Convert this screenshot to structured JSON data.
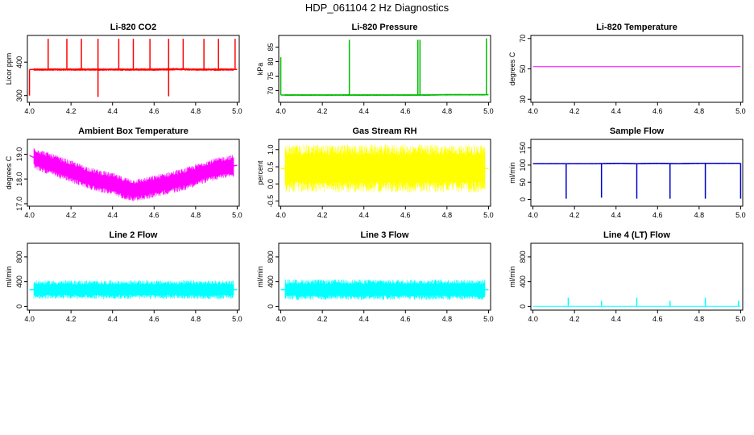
{
  "figure": {
    "title": "HDP_061104  2 Hz Diagnostics"
  },
  "chart_data": [
    {
      "id": "co2",
      "type": "line",
      "title": "Li-820 CO2",
      "xlabel": "",
      "ylabel": "Licor ppm",
      "color": "#ff0000",
      "xlim": [
        3.99,
        5.01
      ],
      "ylim": [
        280,
        480
      ],
      "xticks": [
        4.0,
        4.2,
        4.4,
        4.6,
        4.8,
        5.0
      ],
      "xtick_labels": [
        "4.0",
        "4.2",
        "4.4",
        "4.6",
        "4.8",
        "5.0"
      ],
      "yticks": [
        300,
        400
      ],
      "ytick_labels": [
        "300",
        "400"
      ],
      "x": [
        4.0,
        4.1,
        4.2,
        4.3,
        4.4,
        4.5,
        4.6,
        4.7,
        4.8,
        4.9,
        5.0
      ],
      "values": [
        378,
        378,
        378,
        378,
        378,
        378,
        378,
        379,
        378,
        378,
        378
      ],
      "band": 4,
      "spikes": [
        [
          4.09,
          470
        ],
        [
          4.18,
          470
        ],
        [
          4.25,
          470
        ],
        [
          4.33,
          470
        ],
        [
          4.43,
          470
        ],
        [
          4.5,
          470
        ],
        [
          4.58,
          470
        ],
        [
          4.67,
          470
        ],
        [
          4.74,
          470
        ],
        [
          4.84,
          470
        ],
        [
          4.91,
          470
        ],
        [
          4.99,
          470
        ],
        [
          4.0,
          300
        ],
        [
          4.33,
          296
        ],
        [
          4.67,
          298
        ]
      ]
    },
    {
      "id": "pressure",
      "type": "line",
      "title": "Li-820 Pressure",
      "xlabel": "",
      "ylabel": "kPa",
      "color": "#00bb00",
      "xlim": [
        3.99,
        5.01
      ],
      "ylim": [
        66,
        89
      ],
      "xticks": [
        4.0,
        4.2,
        4.4,
        4.6,
        4.8,
        5.0
      ],
      "xtick_labels": [
        "4.0",
        "4.2",
        "4.4",
        "4.6",
        "4.8",
        "5.0"
      ],
      "yticks": [
        70,
        75,
        80,
        85
      ],
      "ytick_labels": [
        "70",
        "75",
        "80",
        "85"
      ],
      "x": [
        4.0,
        4.1,
        4.2,
        4.3,
        4.4,
        4.5,
        4.6,
        4.7,
        4.8,
        4.9,
        5.0
      ],
      "values": [
        68.5,
        68.5,
        68.5,
        68.5,
        68.5,
        68.5,
        68.5,
        68.5,
        68.6,
        68.6,
        68.6
      ],
      "band": 0.3,
      "spikes": [
        [
          4.0,
          81.5
        ],
        [
          4.33,
          87.5
        ],
        [
          4.66,
          87.5
        ],
        [
          4.67,
          87.5
        ],
        [
          4.99,
          88
        ]
      ]
    },
    {
      "id": "temperature",
      "type": "line",
      "title": "Li-820 Temperature",
      "xlabel": "",
      "ylabel": "degrees C",
      "color": "#ff00ff",
      "xlim": [
        3.99,
        5.01
      ],
      "ylim": [
        28,
        72
      ],
      "xticks": [
        4.0,
        4.2,
        4.4,
        4.6,
        4.8,
        5.0
      ],
      "xtick_labels": [
        "4.0",
        "4.2",
        "4.4",
        "4.6",
        "4.8",
        "5.0"
      ],
      "yticks": [
        30,
        50,
        70
      ],
      "ytick_labels": [
        "30",
        "50",
        "70"
      ],
      "x": [
        4.0,
        5.0
      ],
      "values": [
        51.5,
        51.5
      ],
      "band": 0,
      "spikes": []
    },
    {
      "id": "ambient",
      "type": "line",
      "title": "Ambient Box Temperature",
      "xlabel": "",
      "ylabel": "degrees C",
      "color": "#ff00ff",
      "xlim": [
        3.99,
        5.01
      ],
      "ylim": [
        16.9,
        19.6
      ],
      "xticks": [
        4.0,
        4.2,
        4.4,
        4.6,
        4.8,
        5.0
      ],
      "xtick_labels": [
        "4.0",
        "4.2",
        "4.4",
        "4.6",
        "4.8",
        "5.0"
      ],
      "yticks": [
        17.0,
        18.0,
        19.0
      ],
      "ytick_labels": [
        "17.0",
        "18.0",
        "19.0"
      ],
      "x": [
        4.0,
        4.05,
        4.1,
        4.15,
        4.2,
        4.25,
        4.3,
        4.35,
        4.4,
        4.45,
        4.5,
        4.55,
        4.6,
        4.65,
        4.7,
        4.75,
        4.8,
        4.85,
        4.9,
        4.95,
        5.0
      ],
      "values": [
        18.95,
        18.75,
        18.6,
        18.45,
        18.3,
        18.15,
        18.0,
        17.9,
        17.8,
        17.65,
        17.55,
        17.6,
        17.7,
        17.8,
        17.9,
        18.0,
        18.15,
        18.3,
        18.4,
        18.5,
        18.55
      ],
      "band": 0.45,
      "spikes": []
    },
    {
      "id": "rh",
      "type": "line",
      "title": "Gas Stream RH",
      "xlabel": "",
      "ylabel": "percent",
      "color": "#ffff00",
      "xlim": [
        3.99,
        5.01
      ],
      "ylim": [
        -0.65,
        1.3
      ],
      "xticks": [
        4.0,
        4.2,
        4.4,
        4.6,
        4.8,
        5.0
      ],
      "xtick_labels": [
        "4.0",
        "4.2",
        "4.4",
        "4.6",
        "4.8",
        "5.0"
      ],
      "yticks": [
        -0.5,
        0.0,
        0.5,
        1.0
      ],
      "ytick_labels": [
        "-0.5",
        "0.0",
        "0.5",
        "1.0"
      ],
      "x": [
        4.0,
        5.0
      ],
      "values": [
        0.45,
        0.45
      ],
      "band": 0.7,
      "spikes": []
    },
    {
      "id": "sampleflow",
      "type": "line",
      "title": "Sample Flow",
      "xlabel": "",
      "ylabel": "ml/min",
      "color": "#0000cc",
      "xlim": [
        3.99,
        5.01
      ],
      "ylim": [
        -20,
        175
      ],
      "xticks": [
        4.0,
        4.2,
        4.4,
        4.6,
        4.8,
        5.0
      ],
      "xtick_labels": [
        "4.0",
        "4.2",
        "4.4",
        "4.6",
        "4.8",
        "5.0"
      ],
      "yticks": [
        0,
        50,
        100,
        150
      ],
      "ytick_labels": [
        "0",
        "50",
        "100",
        "150"
      ],
      "x": [
        4.0,
        4.1,
        4.2,
        4.3,
        4.4,
        4.5,
        4.6,
        4.7,
        4.8,
        4.9,
        5.0
      ],
      "values": [
        104,
        104,
        104,
        104,
        105,
        104,
        105,
        104,
        105,
        105,
        105
      ],
      "band": 2,
      "spikes": [
        [
          4.16,
          2
        ],
        [
          4.33,
          5
        ],
        [
          4.5,
          2
        ],
        [
          4.66,
          2
        ],
        [
          4.83,
          2
        ],
        [
          5.0,
          2
        ]
      ]
    },
    {
      "id": "line2",
      "type": "line",
      "title": "Line 2 Flow",
      "xlabel": "",
      "ylabel": "ml/min",
      "color": "#00ffff",
      "xlim": [
        3.99,
        5.01
      ],
      "ylim": [
        -60,
        1020
      ],
      "xticks": [
        4.0,
        4.2,
        4.4,
        4.6,
        4.8,
        5.0
      ],
      "xtick_labels": [
        "4.0",
        "4.2",
        "4.4",
        "4.6",
        "4.8",
        "5.0"
      ],
      "yticks": [
        0,
        400,
        800
      ],
      "ytick_labels": [
        "0",
        "400",
        "800"
      ],
      "x": [
        4.0,
        5.0
      ],
      "values": [
        270,
        270
      ],
      "band": 150,
      "spikes": []
    },
    {
      "id": "line3",
      "type": "line",
      "title": "Line 3 Flow",
      "xlabel": "",
      "ylabel": "ml/min",
      "color": "#00ffff",
      "xlim": [
        3.99,
        5.01
      ],
      "ylim": [
        -60,
        1020
      ],
      "xticks": [
        4.0,
        4.2,
        4.4,
        4.6,
        4.8,
        5.0
      ],
      "xtick_labels": [
        "4.0",
        "4.2",
        "4.4",
        "4.6",
        "4.8",
        "5.0"
      ],
      "yticks": [
        0,
        400,
        800
      ],
      "ytick_labels": [
        "0",
        "400",
        "800"
      ],
      "x": [
        4.0,
        5.0
      ],
      "values": [
        270,
        270
      ],
      "band": 165,
      "spikes": []
    },
    {
      "id": "line4",
      "type": "line",
      "title": "Line 4 (LT) Flow",
      "xlabel": "",
      "ylabel": "ml/min",
      "color": "#00ffff",
      "xlim": [
        3.99,
        5.01
      ],
      "ylim": [
        -60,
        1020
      ],
      "xticks": [
        4.0,
        4.2,
        4.4,
        4.6,
        4.8,
        5.0
      ],
      "xtick_labels": [
        "4.0",
        "4.2",
        "4.4",
        "4.6",
        "4.8",
        "5.0"
      ],
      "yticks": [
        0,
        400,
        800
      ],
      "ytick_labels": [
        "0",
        "400",
        "800"
      ],
      "x": [
        4.0,
        5.0
      ],
      "values": [
        2,
        2
      ],
      "band": 0,
      "spikes": [
        [
          4.17,
          140
        ],
        [
          4.33,
          90
        ],
        [
          4.5,
          140
        ],
        [
          4.66,
          90
        ],
        [
          4.83,
          140
        ],
        [
          4.99,
          90
        ]
      ]
    }
  ]
}
